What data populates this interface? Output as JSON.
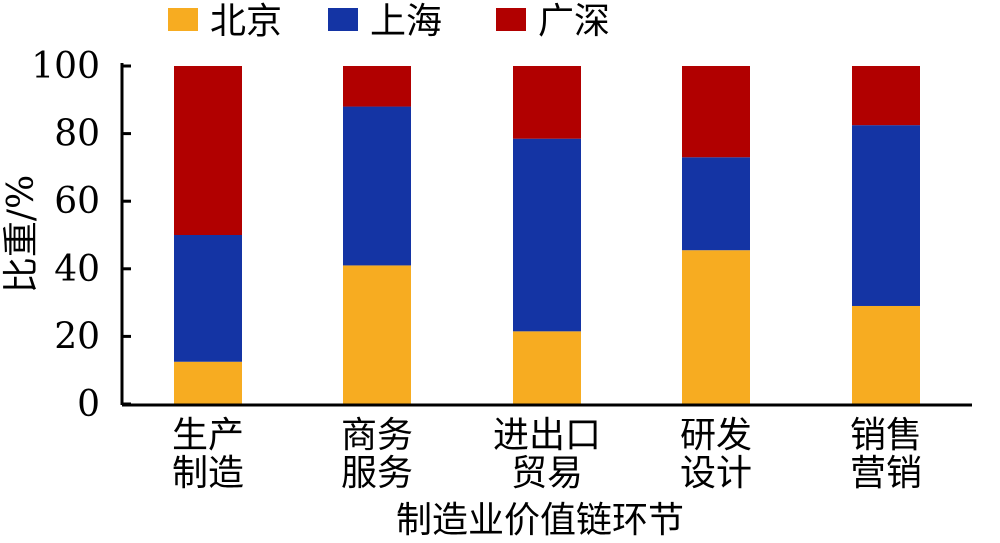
{
  "chart_data": {
    "type": "bar",
    "stacked": true,
    "title": "",
    "xlabel": "制造业价值链环节",
    "ylabel": "比重/%",
    "ylim": [
      0,
      100
    ],
    "yticks": [
      "0",
      "20",
      "40",
      "60",
      "80",
      "100"
    ],
    "categories": [
      [
        "生产",
        "制造"
      ],
      [
        "商务",
        "服务"
      ],
      [
        "进出口",
        "贸易"
      ],
      [
        "研发",
        "设计"
      ],
      [
        "销售",
        "营销"
      ]
    ],
    "series": [
      {
        "name": "北京",
        "color": "#f7ac21",
        "values": [
          12.5,
          41,
          21.5,
          45.5,
          29
        ]
      },
      {
        "name": "上海",
        "color": "#1434a4",
        "values": [
          37.5,
          47,
          57,
          27.5,
          53.5
        ]
      },
      {
        "name": "广深",
        "color": "#b10000",
        "values": [
          50,
          12,
          21.5,
          27,
          17.5
        ]
      }
    ],
    "legend_position": "top"
  }
}
